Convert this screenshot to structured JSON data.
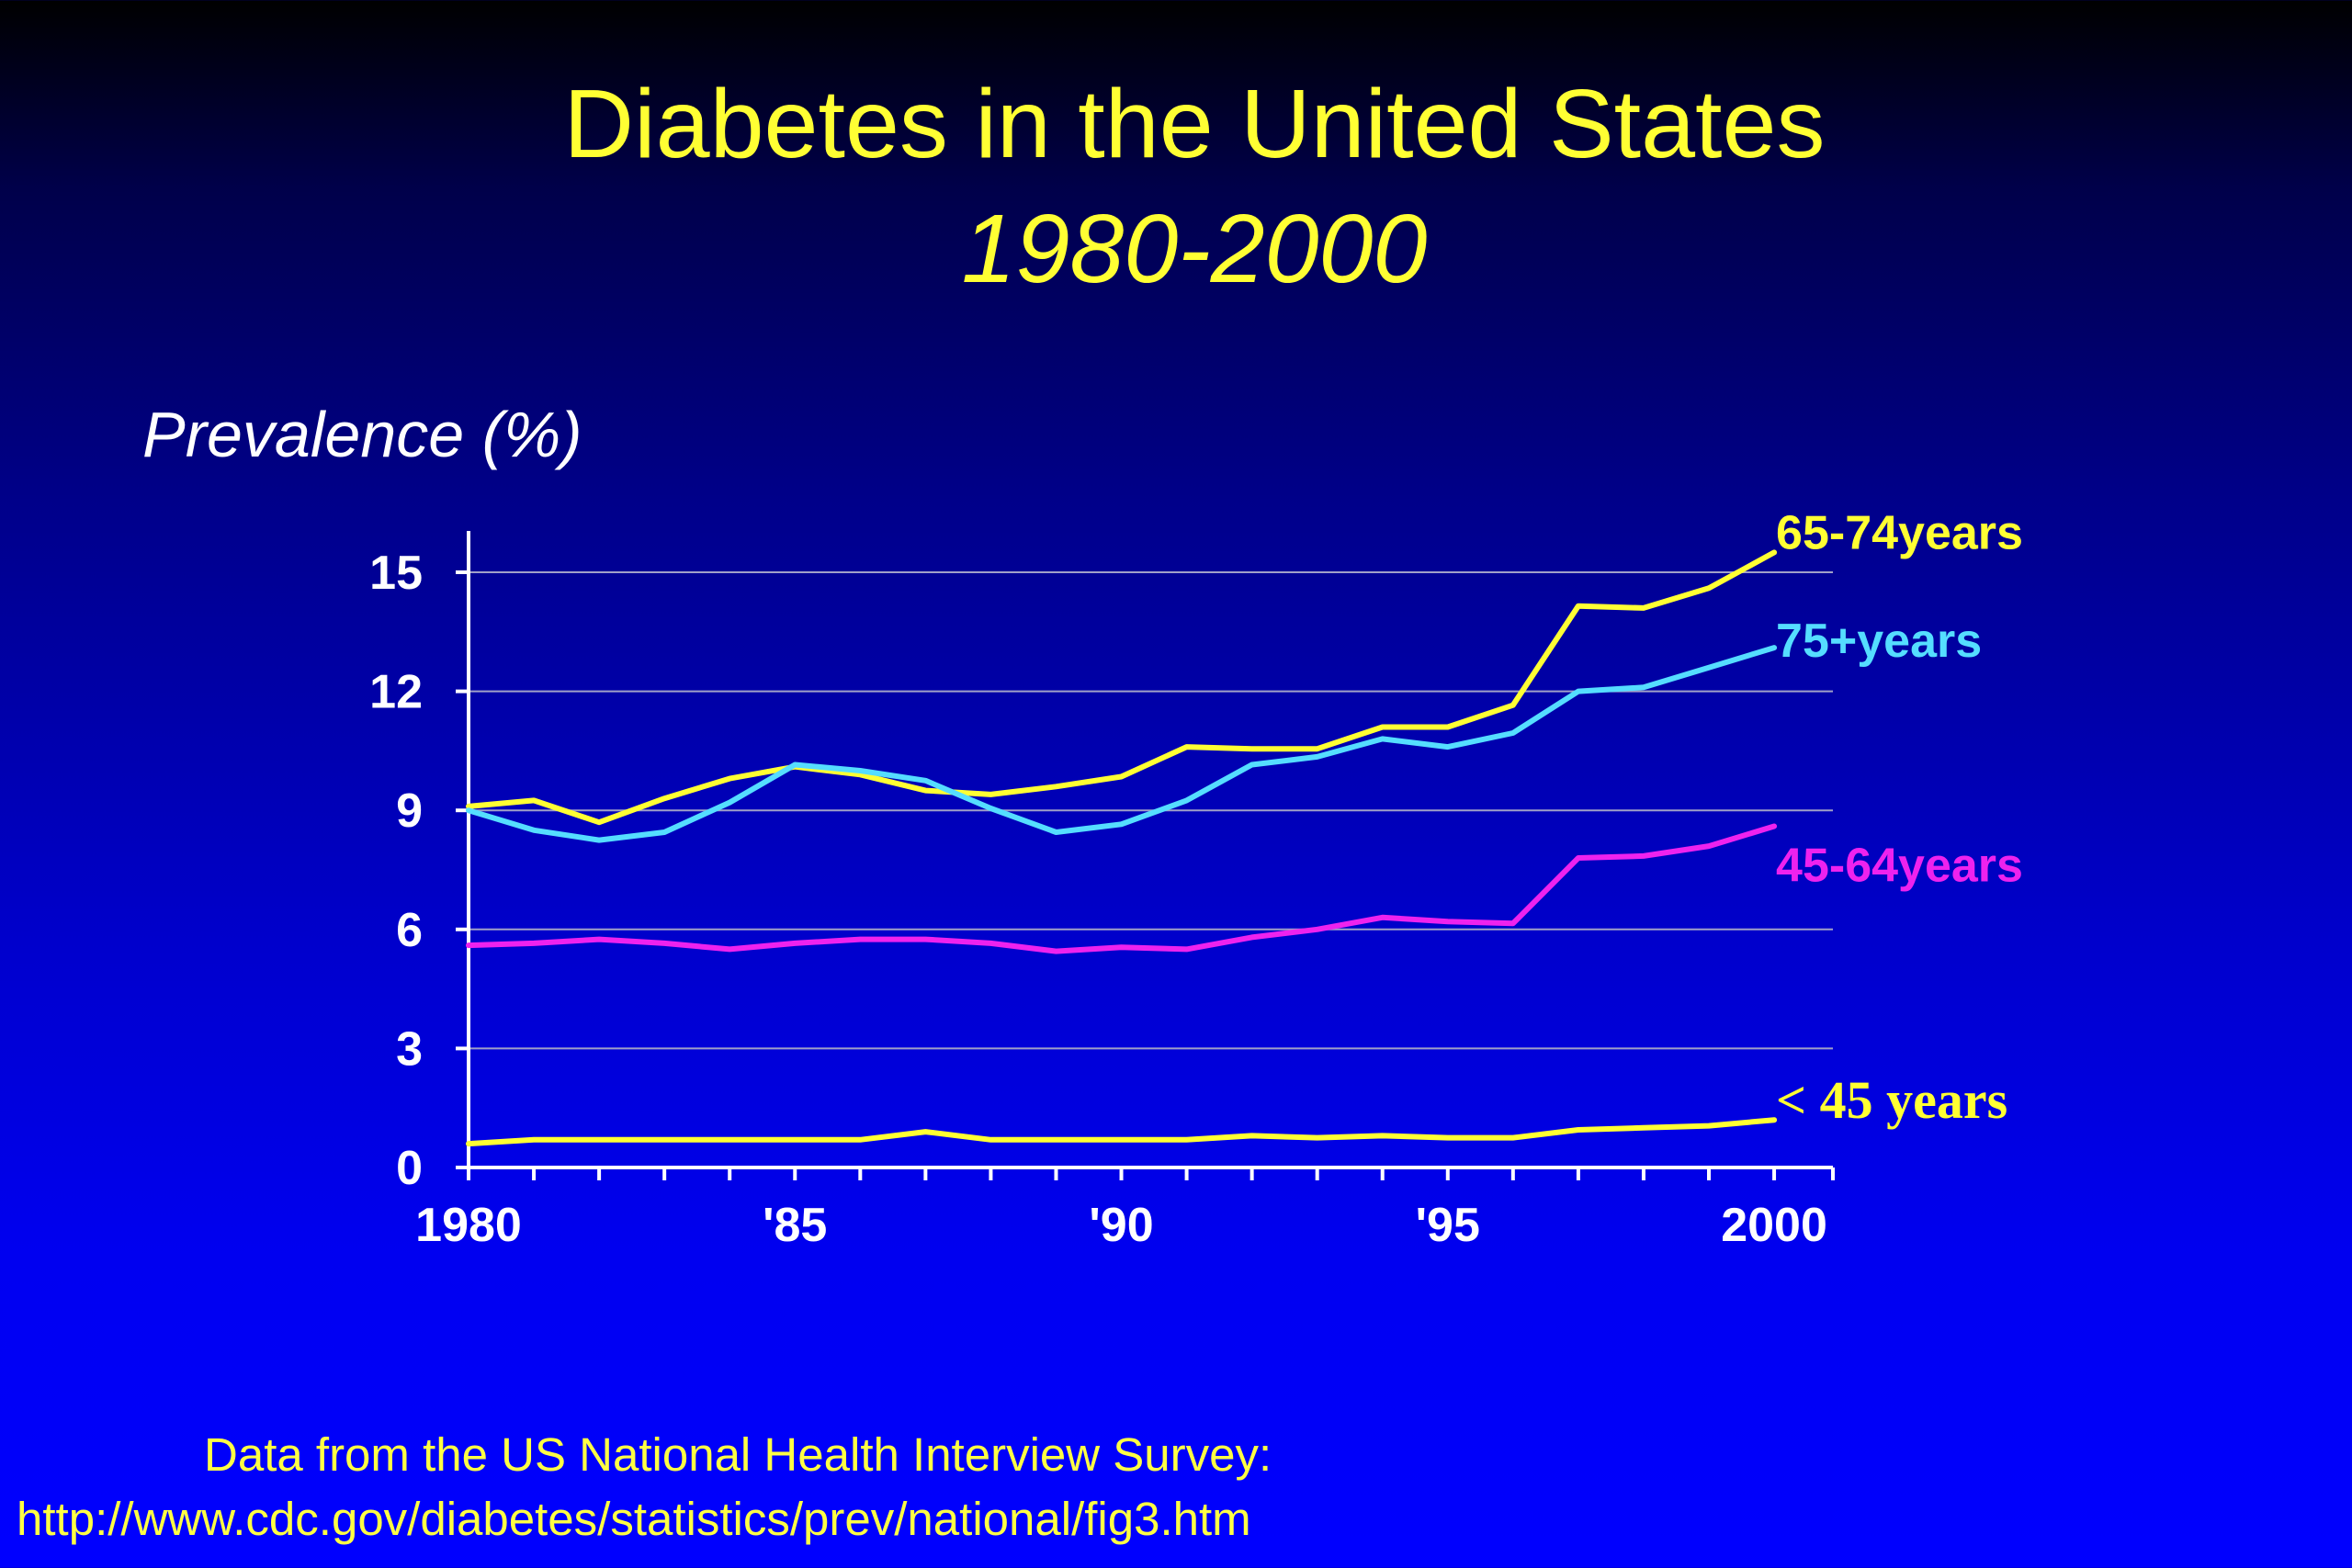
{
  "title": "Diabetes in the United States",
  "subtitle": "1980-2000",
  "footnote": {
    "line1": "Data from the US National Health Interview Survey:",
    "line2": "http://www.cdc.gov/diabetes/statistics/prev/national/fig3.htm"
  },
  "chart_data": {
    "type": "line",
    "title": "Diabetes in the United States 1980-2000",
    "xlabel": "",
    "ylabel": "Prevalence (%)",
    "x": [
      1980,
      1981,
      1982,
      1983,
      1984,
      1985,
      1986,
      1987,
      1988,
      1989,
      1990,
      1991,
      1992,
      1993,
      1994,
      1995,
      1996,
      1997,
      1998,
      1999,
      2000
    ],
    "xlim": [
      1980,
      2000.9
    ],
    "ylim": [
      0,
      16
    ],
    "x_ticks": [
      1980,
      1985,
      1990,
      1995,
      2000
    ],
    "x_tick_labels": [
      "1980",
      "'85",
      "'90",
      "'95",
      "2000"
    ],
    "y_ticks": [
      0,
      3,
      6,
      9,
      12,
      15
    ],
    "y_tick_labels": [
      "0",
      "3",
      "6",
      "9",
      "12",
      "15"
    ],
    "grid": "horizontal",
    "legend": "inline labels at line ends",
    "series": [
      {
        "name": "65-74years",
        "color": "#ffff33",
        "values": [
          9.1,
          9.25,
          8.7,
          9.3,
          9.8,
          10.1,
          9.9,
          9.5,
          9.4,
          9.6,
          9.85,
          10.6,
          10.55,
          10.55,
          11.1,
          11.1,
          11.65,
          14.15,
          14.1,
          14.6,
          15.5
        ]
      },
      {
        "name": "75+years",
        "color": "#55ddff",
        "values": [
          9.0,
          8.5,
          8.25,
          8.45,
          9.2,
          10.15,
          10.0,
          9.75,
          9.05,
          8.45,
          8.65,
          9.25,
          10.15,
          10.35,
          10.8,
          10.6,
          10.95,
          12.0,
          12.1,
          12.6,
          13.1
        ]
      },
      {
        "name": "45-64years",
        "color": "#ee22ee",
        "values": [
          5.6,
          5.65,
          5.75,
          5.65,
          5.5,
          5.65,
          5.75,
          5.75,
          5.65,
          5.45,
          5.55,
          5.5,
          5.8,
          6.0,
          6.3,
          6.2,
          6.15,
          7.8,
          7.85,
          8.1,
          8.6
        ]
      },
      {
        "name": "< 45 years",
        "color": "#ffff33",
        "values": [
          0.6,
          0.7,
          0.7,
          0.7,
          0.7,
          0.7,
          0.7,
          0.9,
          0.7,
          0.7,
          0.7,
          0.7,
          0.8,
          0.75,
          0.8,
          0.75,
          0.75,
          0.95,
          1.0,
          1.05,
          1.2
        ]
      }
    ]
  }
}
